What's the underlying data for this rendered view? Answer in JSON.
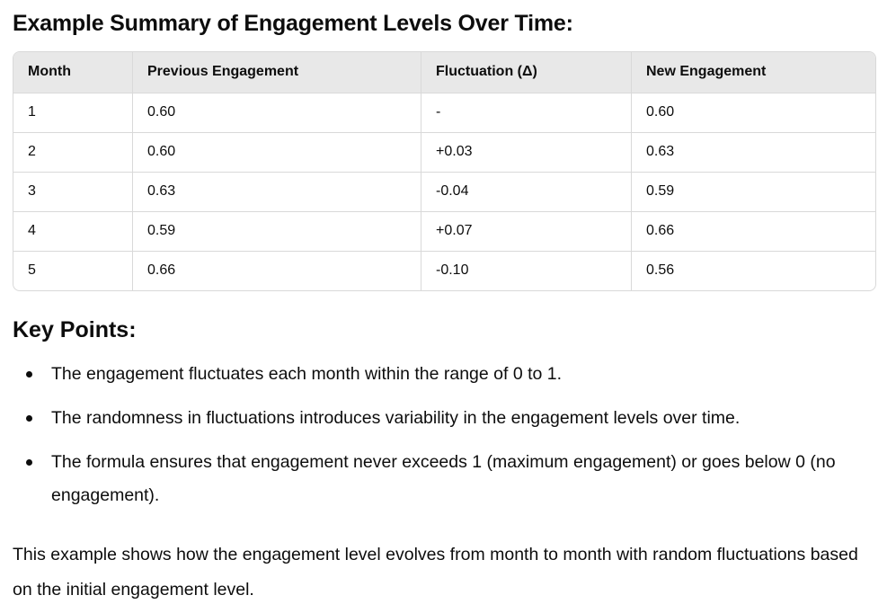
{
  "summary": {
    "heading": "Example Summary of Engagement Levels Over Time:",
    "table": {
      "headers": [
        "Month",
        "Previous Engagement",
        "Fluctuation (Δ)",
        "New Engagement"
      ],
      "rows": [
        [
          "1",
          "0.60",
          "-",
          "0.60"
        ],
        [
          "2",
          "0.60",
          "+0.03",
          "0.63"
        ],
        [
          "3",
          "0.63",
          "-0.04",
          "0.59"
        ],
        [
          "4",
          "0.59",
          "+0.07",
          "0.66"
        ],
        [
          "5",
          "0.66",
          "-0.10",
          "0.56"
        ]
      ]
    }
  },
  "key_points": {
    "heading": "Key Points:",
    "items": [
      "The engagement fluctuates each month within the range of 0 to 1.",
      "The randomness in fluctuations introduces variability in the engagement levels over time.",
      "The formula ensures that engagement never exceeds 1 (maximum engagement) or goes below 0 (no engagement)."
    ]
  },
  "closing": {
    "text": "This example shows how the engagement level evolves from month to month with random fluctuations based on the initial engagement level."
  }
}
